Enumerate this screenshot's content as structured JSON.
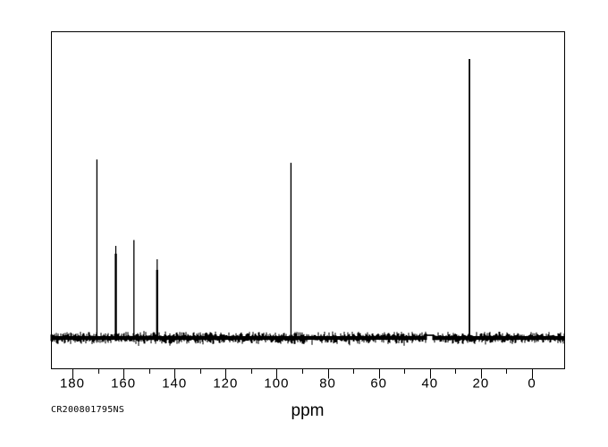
{
  "footer": {
    "sample_id": "CR200801795NS"
  },
  "chart_data": {
    "type": "line",
    "subtype": "13C-NMR-spectrum",
    "title": "",
    "xlabel": "ppm",
    "ylabel": "",
    "grid": false,
    "legend": false,
    "colors": {
      "trace": "#000000",
      "background": "#ffffff",
      "frame": "#000000"
    },
    "x_axis": {
      "unit": "ppm",
      "max": 188.4,
      "min": -12.6,
      "reversed": true,
      "major_ticks": [
        180,
        160,
        140,
        120,
        100,
        80,
        60,
        40,
        20,
        0
      ],
      "minor_ticks": [
        170,
        150,
        130,
        110,
        90,
        70,
        50,
        30,
        10
      ]
    },
    "peaks": [
      {
        "ppm": 170.4,
        "intensity": 0.64,
        "width": 1.3
      },
      {
        "ppm": 163.0,
        "intensity": 0.33,
        "body_intensity": 0.302,
        "width": 2.4
      },
      {
        "ppm": 155.9,
        "intensity": 0.351,
        "width": 1.3
      },
      {
        "ppm": 146.8,
        "intensity": 0.282,
        "body_intensity": 0.244,
        "width": 2.4
      },
      {
        "ppm": 94.4,
        "intensity": 0.628,
        "width": 1.4
      },
      {
        "ppm": 24.5,
        "intensity": 1.0,
        "width": 1.8
      }
    ],
    "baseline_noise": {
      "visible": true,
      "gap_ppm": [
        41.3,
        38.9
      ]
    }
  }
}
